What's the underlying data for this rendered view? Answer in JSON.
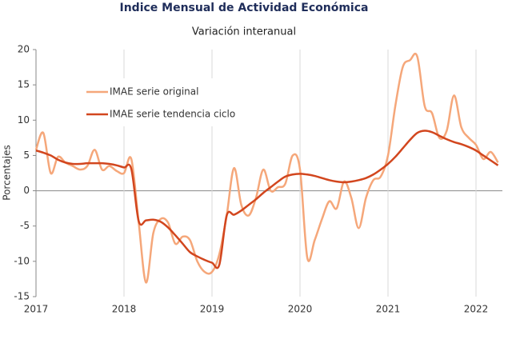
{
  "chart_data": {
    "type": "line",
    "title": "Indice Mensual de  Actividad Económica",
    "subtitle": "Variación interanual",
    "y_label": "Porcentajes",
    "x": [
      2017,
      2017.083,
      2017.167,
      2017.25,
      2017.333,
      2017.417,
      2017.5,
      2017.583,
      2017.667,
      2017.75,
      2017.833,
      2017.917,
      2018,
      2018.083,
      2018.167,
      2018.25,
      2018.333,
      2018.417,
      2018.5,
      2018.583,
      2018.667,
      2018.75,
      2018.833,
      2018.917,
      2019,
      2019.083,
      2019.167,
      2019.25,
      2019.333,
      2019.417,
      2019.5,
      2019.583,
      2019.667,
      2019.75,
      2019.833,
      2019.917,
      2020,
      2020.083,
      2020.167,
      2020.25,
      2020.333,
      2020.417,
      2020.5,
      2020.583,
      2020.667,
      2020.75,
      2020.833,
      2020.917,
      2021,
      2021.083,
      2021.167,
      2021.25,
      2021.333,
      2021.417,
      2021.5,
      2021.583,
      2021.667,
      2021.75,
      2021.833,
      2021.917,
      2022,
      2022.083,
      2022.167,
      2022.25
    ],
    "series": [
      {
        "name": "IMAE serie original",
        "color": "#f5a77a",
        "width": 2.5,
        "values": [
          5.8,
          8.2,
          2.5,
          4.8,
          4.0,
          3.5,
          3.0,
          3.5,
          5.8,
          3.0,
          3.5,
          2.8,
          2.5,
          4.5,
          -4.5,
          -13,
          -6,
          -4,
          -4.5,
          -7.5,
          -6.5,
          -7,
          -10,
          -11.5,
          -11.5,
          -9,
          -3.5,
          3.2,
          -2,
          -3.5,
          -1,
          3,
          0,
          0.5,
          1,
          5,
          3,
          -9.5,
          -7,
          -4,
          -1.5,
          -2.5,
          1.3,
          -1,
          -5.3,
          -1,
          1.5,
          2,
          5,
          12,
          17.5,
          18.5,
          19,
          12,
          11,
          7.5,
          8.5,
          13.5,
          9,
          7.5,
          6.5,
          4.5,
          5.5,
          4
        ]
      },
      {
        "name": "IMAE serie  tendencia ciclo",
        "color": "#d2461e",
        "width": 2.5,
        "values": [
          5.7,
          5.4,
          5.0,
          4.4,
          4.0,
          3.8,
          3.8,
          3.9,
          3.9,
          3.9,
          3.8,
          3.6,
          3.3,
          3.1,
          -4.3,
          -4.2,
          -4.1,
          -4.4,
          -5.2,
          -6.3,
          -7.5,
          -8.7,
          -9.3,
          -9.8,
          -10.2,
          -10.5,
          -3.5,
          -3.4,
          -2.8,
          -2.0,
          -1.2,
          -0.3,
          0.5,
          1.3,
          2.0,
          2.3,
          2.4,
          2.3,
          2.1,
          1.8,
          1.5,
          1.3,
          1.2,
          1.3,
          1.5,
          1.8,
          2.3,
          3.0,
          3.8,
          4.8,
          6.0,
          7.2,
          8.2,
          8.5,
          8.3,
          7.8,
          7.3,
          6.9,
          6.6,
          6.2,
          5.7,
          5.0,
          4.3,
          3.6
        ]
      }
    ],
    "xlim": [
      2017,
      2022.3
    ],
    "xticks": [
      2017,
      2018,
      2019,
      2020,
      2021,
      2022
    ],
    "ylim": [
      -15,
      20
    ],
    "yticks": [
      -15,
      -10,
      -5,
      0,
      5,
      10,
      15,
      20
    ],
    "grid": "x"
  }
}
